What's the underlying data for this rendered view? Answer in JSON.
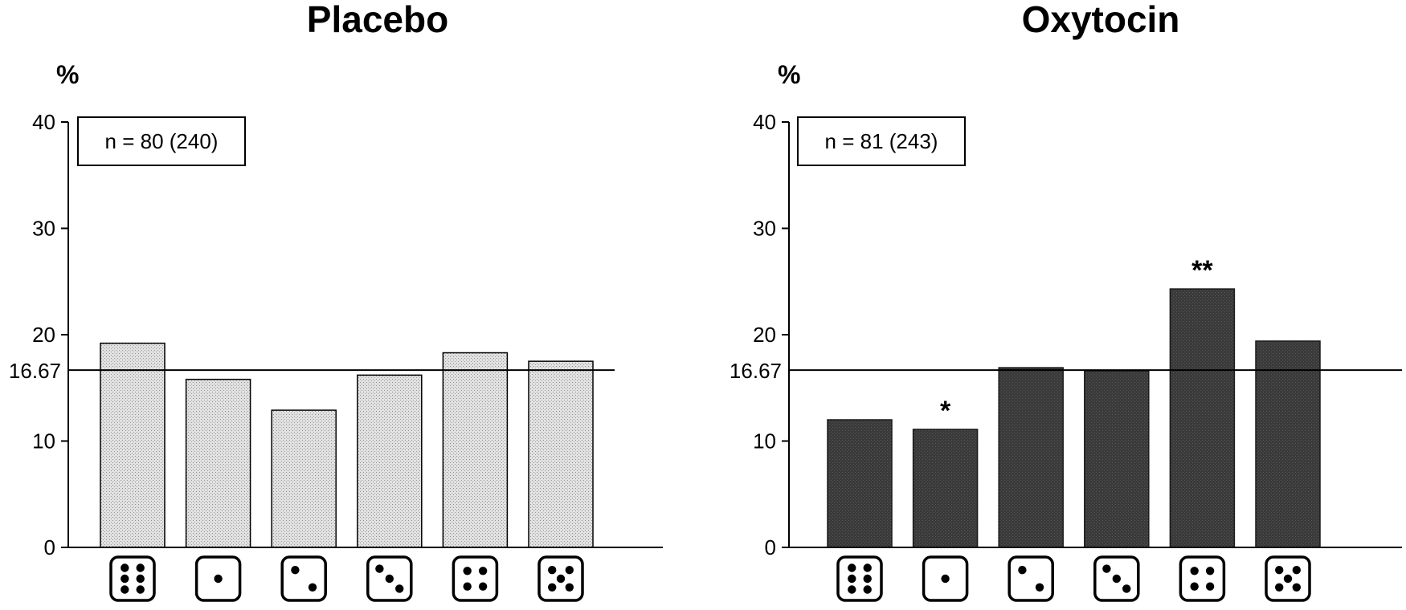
{
  "chart_data": [
    {
      "type": "bar",
      "title": "Placebo",
      "ylabel": "%",
      "ylim": [
        0,
        40
      ],
      "yticks": [
        "0",
        "10",
        "20",
        "30",
        "40"
      ],
      "reference_line": {
        "value": 16.67,
        "label": "16.67"
      },
      "categories": [
        6,
        1,
        2,
        3,
        4,
        5
      ],
      "values": [
        19.2,
        15.8,
        12.9,
        16.2,
        18.3,
        17.5
      ],
      "sample_label": "n = 80 (240)",
      "annotations": [
        "",
        "",
        "",
        "",
        "",
        ""
      ],
      "bar_color": "#d6d6d6",
      "bar_style": "light-stippled"
    },
    {
      "type": "bar",
      "title": "Oxytocin",
      "ylabel": "%",
      "ylim": [
        0,
        40
      ],
      "yticks": [
        "0",
        "10",
        "20",
        "30",
        "40"
      ],
      "reference_line": {
        "value": 16.67,
        "label": "16.67"
      },
      "categories": [
        6,
        1,
        2,
        3,
        4,
        5
      ],
      "values": [
        12.0,
        11.1,
        16.9,
        16.6,
        24.3,
        19.4
      ],
      "sample_label": "n = 81 (243)",
      "annotations": [
        "",
        "*",
        "",
        "",
        "**",
        ""
      ],
      "bar_color": "#3f3f3f",
      "bar_style": "dark-stippled"
    }
  ]
}
